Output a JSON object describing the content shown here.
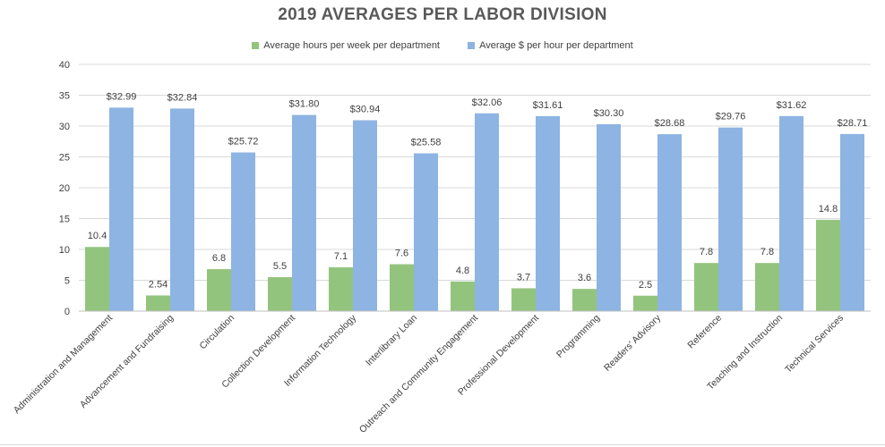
{
  "colors": {
    "hours": "#93c47d",
    "dollars": "#8db4e2",
    "grid": "#d9d9d9",
    "axis_text": "#404040"
  },
  "chart_data": {
    "type": "bar",
    "title": "2019 AVERAGES PER LABOR DIVISION",
    "xlabel": "",
    "ylabel": "",
    "ylim": [
      0,
      40
    ],
    "yticks": [
      "0",
      "5",
      "10",
      "15",
      "20",
      "25",
      "30",
      "35",
      "40"
    ],
    "grid": true,
    "legend_position": "top",
    "categories": [
      "Administration and Management",
      "Advancement and Fundraising",
      "Circulation",
      "Collection Development",
      "Information Technology",
      "Interlibrary Loan",
      "Outreach and Community Engagement",
      "Professional Development",
      "Programming",
      "Readers' Advisory",
      "Reference",
      "Teaching and Instruction",
      "Technical Services"
    ],
    "series": [
      {
        "name": "Average hours per week per department",
        "values": [
          10.4,
          2.54,
          6.8,
          5.5,
          7.1,
          7.6,
          4.8,
          3.7,
          3.6,
          2.5,
          7.8,
          7.8,
          14.8
        ],
        "labels": [
          "10.4",
          "2.54",
          "6.8",
          "5.5",
          "7.1",
          "7.6",
          "4.8",
          "3.7",
          "3.6",
          "2.5",
          "7.8",
          "7.8",
          "14.8"
        ]
      },
      {
        "name": "Average $ per hour per department",
        "values": [
          32.99,
          32.84,
          25.72,
          31.8,
          30.94,
          25.58,
          32.06,
          31.61,
          30.3,
          28.68,
          29.76,
          31.62,
          28.71
        ],
        "labels": [
          "$32.99",
          "$32.84",
          "$25.72",
          "$31.80",
          "$30.94",
          "$25.58",
          "$32.06",
          "$31.61",
          "$30.30",
          "$28.68",
          "$29.76",
          "$31.62",
          "$28.71"
        ]
      }
    ]
  }
}
